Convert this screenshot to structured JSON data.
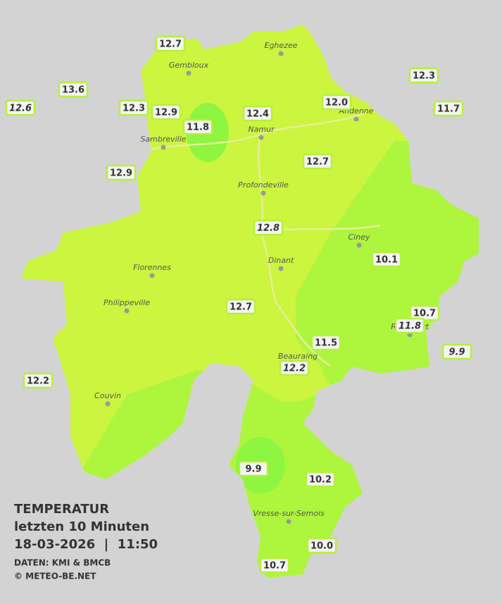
{
  "title": {
    "heading": "TEMPERATUR",
    "period": "letzten 10 Minuten",
    "datetime": "18-03-2026  |  11:50",
    "source": "DATEN: KMI & BMCB",
    "copyright": "© METEO-BE.NET"
  },
  "cities": [
    "Gembloux",
    "Eghezee",
    "Andenne",
    "Namur",
    "Sambreville",
    "Profondeville",
    "Ciney",
    "Dinant",
    "Florennes",
    "Philippeville",
    "Rochefort",
    "Beauraing",
    "Couvin",
    "Vresse-sur-Semois"
  ],
  "stations": [
    {
      "label": "12.7",
      "italic": false
    },
    {
      "label": "13.6",
      "italic": false
    },
    {
      "label": "12.6",
      "italic": true
    },
    {
      "label": "12.3",
      "italic": false
    },
    {
      "label": "12.9",
      "italic": false
    },
    {
      "label": "11.8",
      "italic": false
    },
    {
      "label": "12.4",
      "italic": false
    },
    {
      "label": "12.0",
      "italic": false
    },
    {
      "label": "12.3",
      "italic": false
    },
    {
      "label": "11.7",
      "italic": false
    },
    {
      "label": "12.9",
      "italic": false
    },
    {
      "label": "12.7",
      "italic": false
    },
    {
      "label": "12.8",
      "italic": true
    },
    {
      "label": "10.1",
      "italic": false
    },
    {
      "label": "12.7",
      "italic": false
    },
    {
      "label": "10.7",
      "italic": false
    },
    {
      "label": "11.8",
      "italic": true
    },
    {
      "label": "9.9",
      "italic": true
    },
    {
      "label": "11.5",
      "italic": false
    },
    {
      "label": "12.2",
      "italic": true
    },
    {
      "label": "12.2",
      "italic": false
    },
    {
      "label": "9.9",
      "italic": false
    },
    {
      "label": "10.2",
      "italic": false
    },
    {
      "label": "10.0",
      "italic": false
    },
    {
      "label": "10.7",
      "italic": false
    }
  ]
}
